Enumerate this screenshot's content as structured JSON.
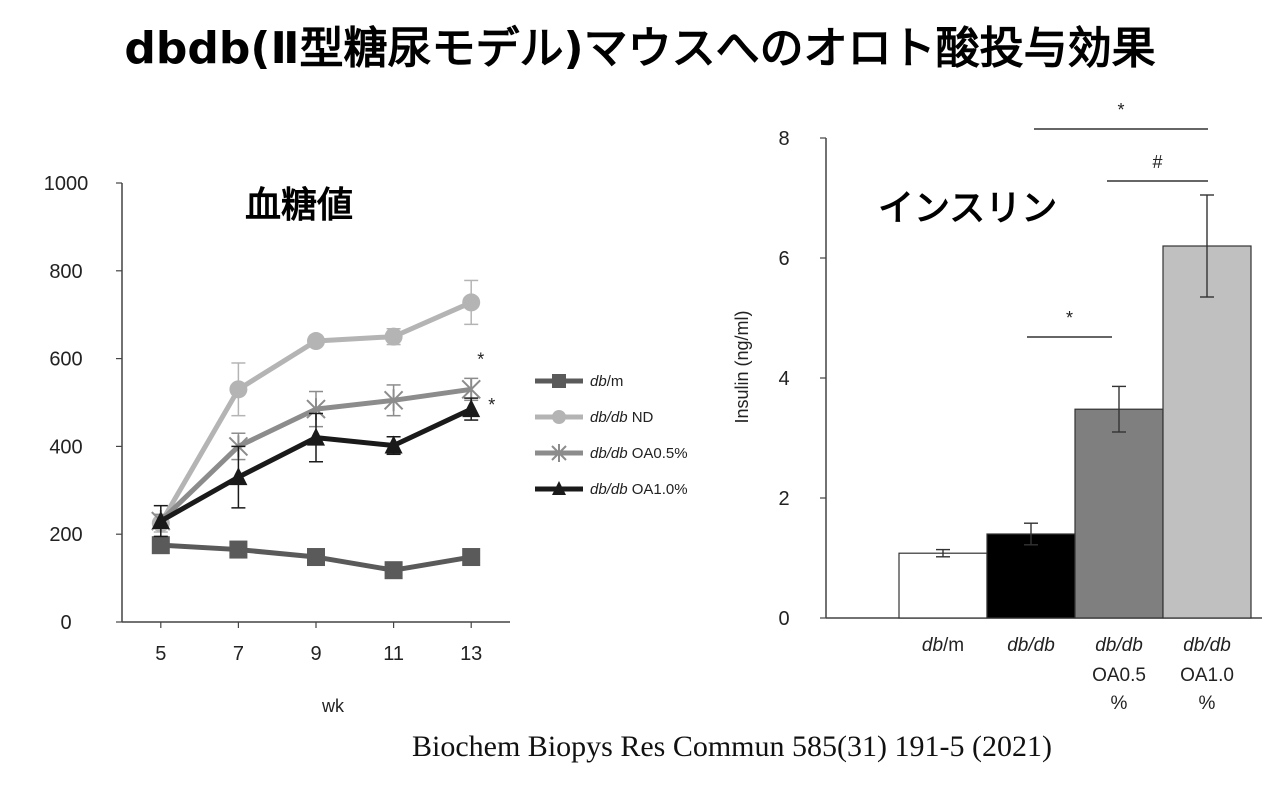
{
  "page": {
    "title": "dbdb(Ⅱ型糖尿モデル)マウスへのオロト酸投与効果",
    "citation": "Biochem Biopys Res Commun 585(31) 191-5 (2021)"
  },
  "chart_data": [
    {
      "type": "line",
      "title": "血糖値",
      "xlabel": "wk",
      "ylabel": "",
      "x": [
        5,
        7,
        9,
        11,
        13
      ],
      "xticks": [
        "5",
        "7",
        "9",
        "11",
        "13"
      ],
      "ylim": [
        0,
        1000
      ],
      "yticks": [
        "0",
        "200",
        "400",
        "600",
        "800",
        "1000"
      ],
      "grid": false,
      "legend_position": "right",
      "series": [
        {
          "name_italic": "db",
          "name_rest": "/m",
          "marker": "square",
          "color": "#5a5a5a",
          "values": [
            175,
            165,
            148,
            118,
            148
          ],
          "errors": [
            12,
            12,
            8,
            8,
            8
          ]
        },
        {
          "name_italic": "db/db",
          "name_rest": " ND",
          "marker": "circle",
          "color": "#b4b4b4",
          "values": [
            225,
            530,
            640,
            650,
            728
          ],
          "errors": [
            20,
            60,
            0,
            18,
            50
          ]
        },
        {
          "name_italic": "db/db",
          "name_rest": " OA0.5%",
          "marker": "cross",
          "color": "#8c8c8c",
          "values": [
            230,
            400,
            485,
            505,
            530
          ],
          "errors": [
            15,
            30,
            40,
            35,
            25
          ]
        },
        {
          "name_italic": "db/db",
          "name_rest": " OA1.0%",
          "marker": "triangle",
          "color": "#1a1a1a",
          "values": [
            230,
            330,
            420,
            402,
            485
          ],
          "errors": [
            35,
            70,
            55,
            20,
            25
          ]
        }
      ],
      "annotations": [
        {
          "text": "*",
          "series": 2,
          "x": 13
        },
        {
          "text": "*",
          "series": 3,
          "x": 13
        }
      ]
    },
    {
      "type": "bar",
      "title": "インスリン",
      "xlabel": "",
      "ylabel": "Insulin (ng/ml)",
      "ylim": [
        0,
        8
      ],
      "yticks": [
        "0",
        "2",
        "4",
        "6",
        "8"
      ],
      "grid": false,
      "categories": [
        {
          "italic": "db",
          "rest": "/m",
          "line2": "",
          "line3": ""
        },
        {
          "italic": "db/db",
          "rest": "",
          "line2": "",
          "line3": ""
        },
        {
          "italic": "db/db",
          "rest": "",
          "line2": "OA0.5",
          "line3": "%"
        },
        {
          "italic": "db/db",
          "rest": "",
          "line2": "OA1.0",
          "line3": "%"
        }
      ],
      "values": [
        1.08,
        1.4,
        3.48,
        6.2
      ],
      "errors": [
        0.06,
        0.18,
        0.38,
        0.85
      ],
      "colors": [
        "#ffffff",
        "#000000",
        "#7f7f7f",
        "#c0c0c0"
      ],
      "significance": [
        {
          "label": "*",
          "from": 1,
          "to": 2
        },
        {
          "label": "#",
          "from": 2,
          "to": 3
        },
        {
          "label": "*",
          "from": 1,
          "to": 3
        }
      ]
    }
  ]
}
